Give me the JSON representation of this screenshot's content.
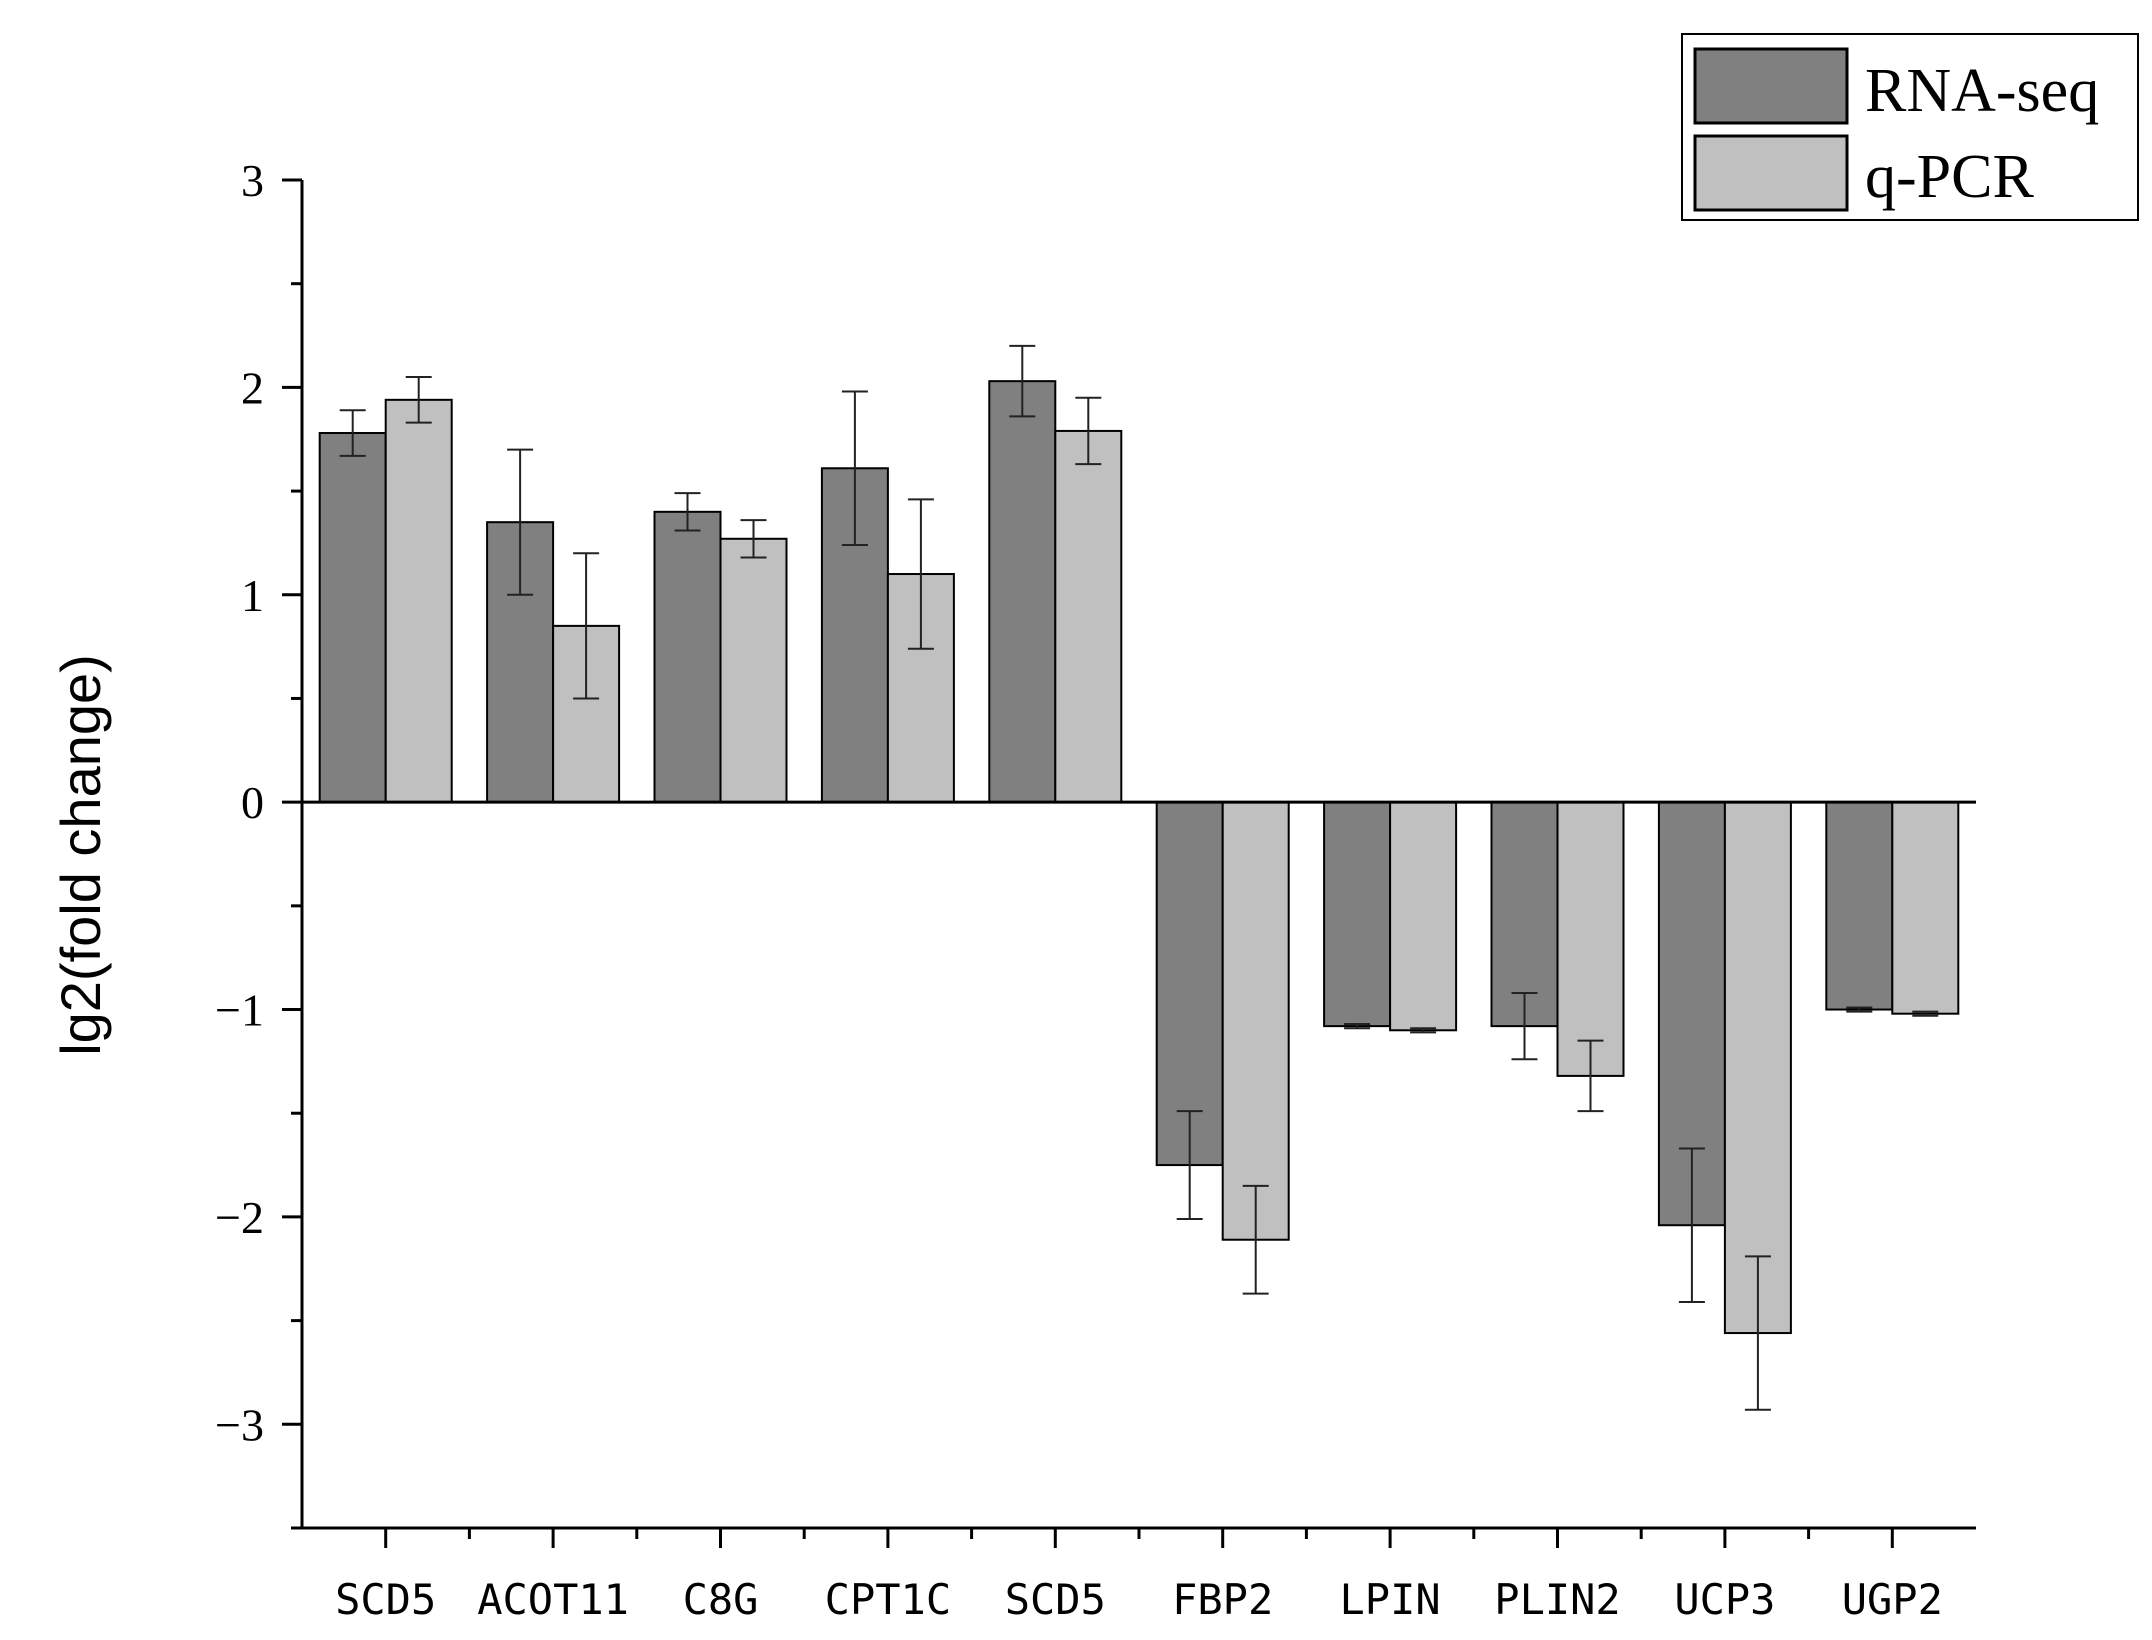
{
  "chart_data": {
    "type": "bar",
    "title": "",
    "xlabel": "",
    "ylabel": "lg2(fold change)",
    "ylim": [
      -3.5,
      3
    ],
    "yticks": [
      -3,
      -2,
      -1,
      0,
      1,
      2,
      3
    ],
    "ytick_labels": [
      "−3",
      "−2",
      "−1",
      "0",
      "1",
      "2",
      "3"
    ],
    "categories": [
      "SCD5",
      "ACOT11",
      "C8G",
      "CPT1C",
      "SCD5",
      "FBP2",
      "LPIN",
      "PLIN2",
      "UCP3",
      "UGP2"
    ],
    "series": [
      {
        "name": "RNA-seq",
        "color": "#808080",
        "values": [
          1.78,
          1.35,
          1.4,
          1.61,
          2.03,
          -1.75,
          -1.08,
          -1.08,
          -2.04,
          -1.0
        ],
        "errors": [
          0.11,
          0.35,
          0.09,
          0.37,
          0.17,
          0.26,
          0.01,
          0.16,
          0.37,
          0.01
        ]
      },
      {
        "name": "q-PCR",
        "color": "#c0c0c0",
        "values": [
          1.94,
          0.85,
          1.27,
          1.1,
          1.79,
          -2.11,
          -1.1,
          -1.32,
          -2.56,
          -1.02
        ],
        "errors": [
          0.11,
          0.35,
          0.09,
          0.36,
          0.16,
          0.26,
          0.01,
          0.17,
          0.37,
          0.01
        ]
      }
    ],
    "legend_position": "top-right",
    "grid": false
  }
}
